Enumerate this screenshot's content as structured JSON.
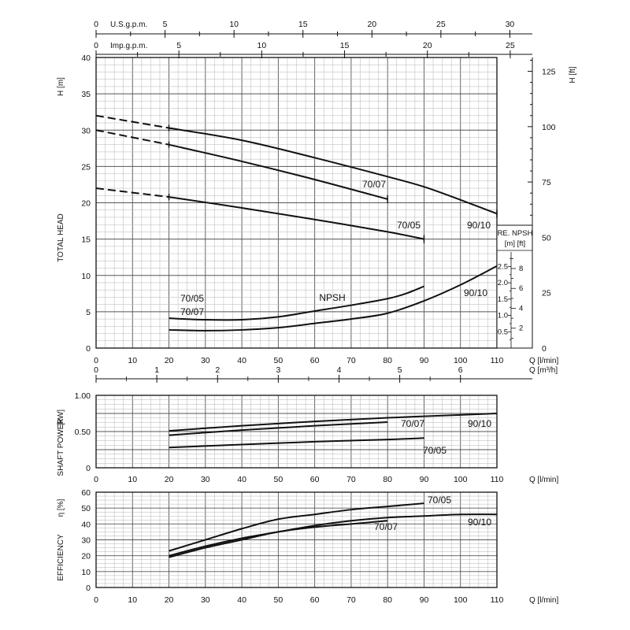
{
  "chart_data": [
    {
      "type": "line",
      "name": "head",
      "ylabel_left": "TOTAL HEAD",
      "yunit_left": "H [m]",
      "yunit_right": "H [ft]",
      "x_unit": "Q [l/min]",
      "x_unit_m3h": "Q [m³/h]",
      "usgpm_label": "U.S.g.p.m.",
      "impgpm_label": "Imp.g.p.m.",
      "npsh_label": "NPSH",
      "npsh_axis_title": "RE. NPSH",
      "npsh_axis_units": "[m] [ft]",
      "xlim": [
        0,
        110
      ],
      "ylim": [
        0,
        40
      ],
      "x_ticks": [
        "0",
        "10",
        "20",
        "30",
        "40",
        "50",
        "60",
        "70",
        "80",
        "90",
        "100",
        "110"
      ],
      "y_ticks": [
        "0",
        "5",
        "10",
        "15",
        "20",
        "25",
        "30",
        "35",
        "40"
      ],
      "ft_ticks": [
        "0",
        "25",
        "50",
        "75",
        "100",
        "125"
      ],
      "usgpm_ticks": [
        "0",
        "5",
        "10",
        "15",
        "20",
        "25",
        "30"
      ],
      "impgpm_ticks": [
        "0",
        "5",
        "10",
        "15",
        "20",
        "25"
      ],
      "m3h_ticks": [
        "0",
        "1",
        "2",
        "3",
        "4",
        "5",
        "6"
      ],
      "npsh_m_ticks": [
        "0.5",
        "1.0",
        "1.5",
        "2.0",
        "2.5"
      ],
      "npsh_ft_ticks": [
        "2",
        "4",
        "6",
        "8"
      ],
      "series": [
        {
          "name": "90/10",
          "dashed_to": 20,
          "x": [
            0,
            20,
            40,
            60,
            80,
            90,
            100,
            110
          ],
          "y": [
            32,
            30.3,
            28.6,
            26.2,
            23.6,
            22.2,
            20.4,
            18.5
          ]
        },
        {
          "name": "70/07",
          "dashed_to": 20,
          "x": [
            0,
            20,
            40,
            60,
            80
          ],
          "y": [
            30,
            28,
            25.7,
            23.2,
            20.5
          ]
        },
        {
          "name": "70/05",
          "dashed_to": 20,
          "x": [
            0,
            20,
            40,
            60,
            80,
            90
          ],
          "y": [
            22,
            20.8,
            19.3,
            17.7,
            16,
            15
          ]
        }
      ],
      "npsh_series": [
        {
          "name": "70/05 70/07",
          "x": [
            20,
            30,
            40,
            50,
            60,
            70,
            80,
            85,
            90
          ],
          "y": [
            4.1,
            3.9,
            3.9,
            4.3,
            5.1,
            5.9,
            6.8,
            7.5,
            8.5
          ]
        },
        {
          "name": "90/10",
          "x": [
            20,
            30,
            40,
            50,
            60,
            70,
            80,
            90,
            100,
            110
          ],
          "y": [
            2.5,
            2.4,
            2.5,
            2.8,
            3.4,
            4.0,
            4.8,
            6.5,
            8.7,
            11.3
          ]
        }
      ],
      "labels": {
        "s9010": "90/10",
        "s7007": "70/07",
        "s7005": "70/05",
        "npsh_a": "70/05",
        "npsh_b": "70/07",
        "npsh_c": "90/10"
      }
    },
    {
      "type": "line",
      "name": "shaft_power",
      "ylabel": "SHAFT POWER",
      "yunit": "[kW]",
      "x_unit": "Q [l/min]",
      "xlim": [
        0,
        110
      ],
      "ylim": [
        0,
        1.0
      ],
      "x_ticks": [
        "0",
        "10",
        "20",
        "30",
        "40",
        "50",
        "60",
        "70",
        "80",
        "90",
        "100",
        "110"
      ],
      "y_ticks": [
        "0",
        "0.50",
        "1.00"
      ],
      "series": [
        {
          "name": "90/10",
          "x": [
            20,
            40,
            60,
            80,
            100,
            110
          ],
          "y": [
            0.51,
            0.58,
            0.64,
            0.69,
            0.73,
            0.75
          ]
        },
        {
          "name": "70/07",
          "x": [
            20,
            40,
            60,
            80
          ],
          "y": [
            0.45,
            0.52,
            0.58,
            0.63
          ]
        },
        {
          "name": "70/05",
          "x": [
            20,
            40,
            60,
            80,
            90
          ],
          "y": [
            0.28,
            0.32,
            0.36,
            0.39,
            0.41
          ]
        }
      ],
      "labels": {
        "s9010": "90/10",
        "s7007": "70/07",
        "s7005": "70/05"
      }
    },
    {
      "type": "line",
      "name": "efficiency",
      "ylabel": "EFFICIENCY",
      "yunit": "η [%]",
      "x_unit": "Q [l/min]",
      "xlim": [
        0,
        110
      ],
      "ylim": [
        0,
        60
      ],
      "x_ticks": [
        "0",
        "10",
        "20",
        "30",
        "40",
        "50",
        "60",
        "70",
        "80",
        "90",
        "100",
        "110"
      ],
      "y_ticks": [
        "0",
        "10",
        "20",
        "30",
        "40",
        "50",
        "60"
      ],
      "series": [
        {
          "name": "70/05",
          "x": [
            20,
            30,
            40,
            50,
            60,
            70,
            80,
            90
          ],
          "y": [
            23,
            30,
            37,
            43,
            46,
            49,
            51,
            53
          ]
        },
        {
          "name": "90/10",
          "x": [
            20,
            30,
            40,
            50,
            60,
            70,
            80,
            90,
            100,
            110
          ],
          "y": [
            20,
            26,
            31,
            35,
            39,
            42,
            44,
            45,
            46,
            46
          ]
        },
        {
          "name": "70/07",
          "x": [
            20,
            30,
            40,
            50,
            60,
            70,
            80
          ],
          "y": [
            19,
            25,
            30,
            35,
            38,
            40,
            42
          ]
        }
      ],
      "labels": {
        "s7005": "70/05",
        "s9010": "90/10",
        "s7007": "70/07"
      }
    }
  ]
}
